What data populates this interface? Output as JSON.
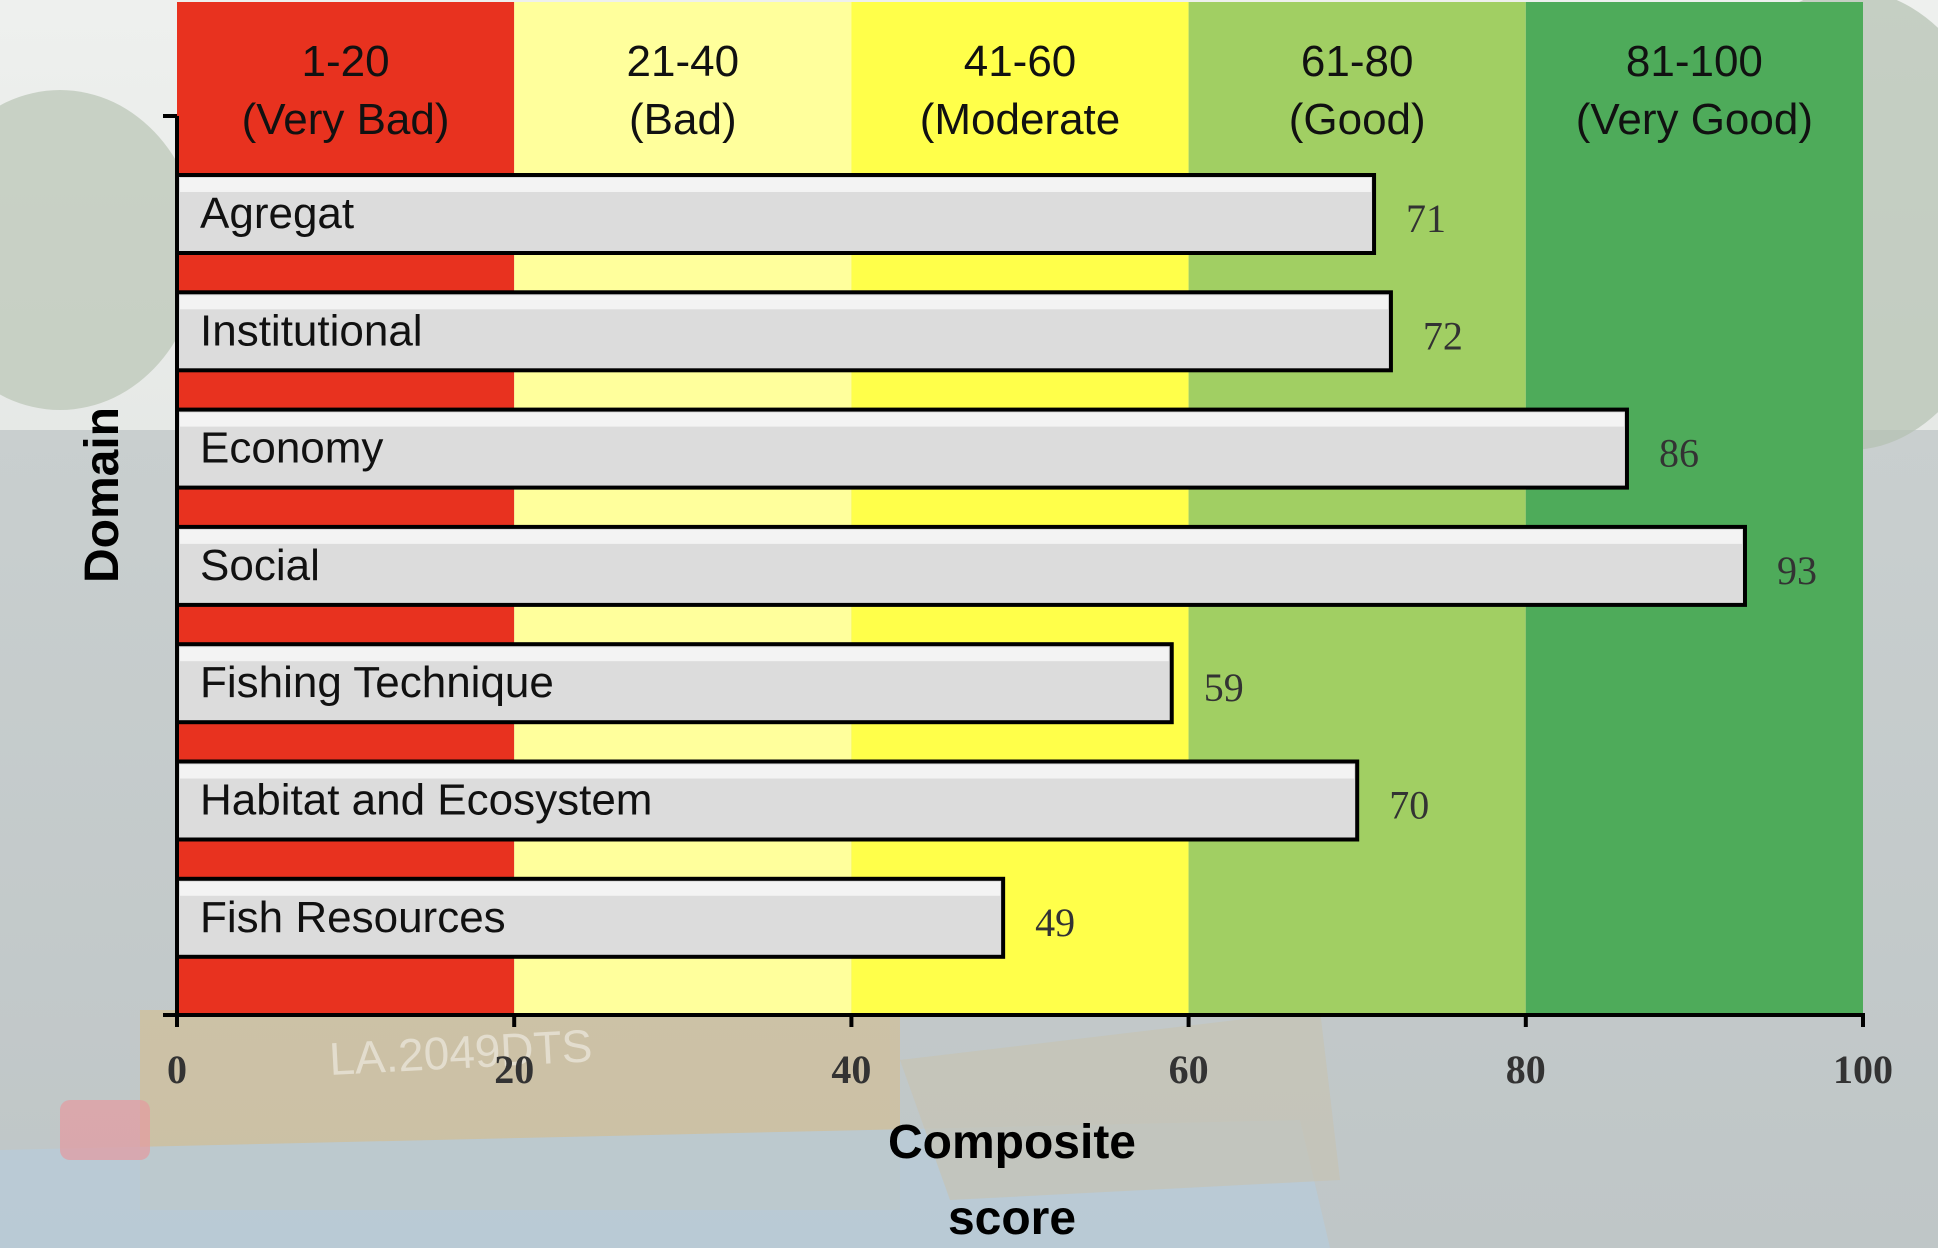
{
  "chart_data": {
    "type": "bar",
    "orientation": "horizontal",
    "categories": [
      "Agregat",
      "Institutional",
      "Economy",
      "Social",
      "Fishing Technique",
      "Habitat and Ecosystem",
      "Fish Resources"
    ],
    "values": [
      71,
      72,
      86,
      93,
      59,
      70,
      49
    ],
    "value_labels": [
      "71",
      "72",
      "86",
      "93",
      "59",
      "70",
      "49"
    ],
    "xlabel_lines": [
      "Composite",
      "score"
    ],
    "ylabel": "Domain",
    "xlim": [
      0,
      100
    ],
    "xticks": [
      "0",
      "20",
      "40",
      "60",
      "80",
      "100"
    ],
    "xtick_values": [
      0,
      20,
      40,
      60,
      80,
      100
    ],
    "bands": [
      {
        "from": 0,
        "to": 20,
        "line1": "1-20",
        "line2": "(Very Bad)",
        "color": "#e8321f"
      },
      {
        "from": 20,
        "to": 40,
        "line1": "21-40",
        "line2": "(Bad)",
        "color": "#ffff9c"
      },
      {
        "from": 40,
        "to": 60,
        "line1": "41-60",
        "line2": "(Moderate",
        "color": "#ffff4a"
      },
      {
        "from": 60,
        "to": 80,
        "line1": "61-80",
        "line2": "(Good)",
        "color": "#a1cf63"
      },
      {
        "from": 80,
        "to": 100,
        "line1": "81-100",
        "line2": "(Very Good)",
        "color": "#4eab5a"
      }
    ],
    "bar_color": "#dcdcdc",
    "grid": false,
    "legend": "none"
  },
  "background": {
    "watermark_text": "LA.2049DTS"
  }
}
